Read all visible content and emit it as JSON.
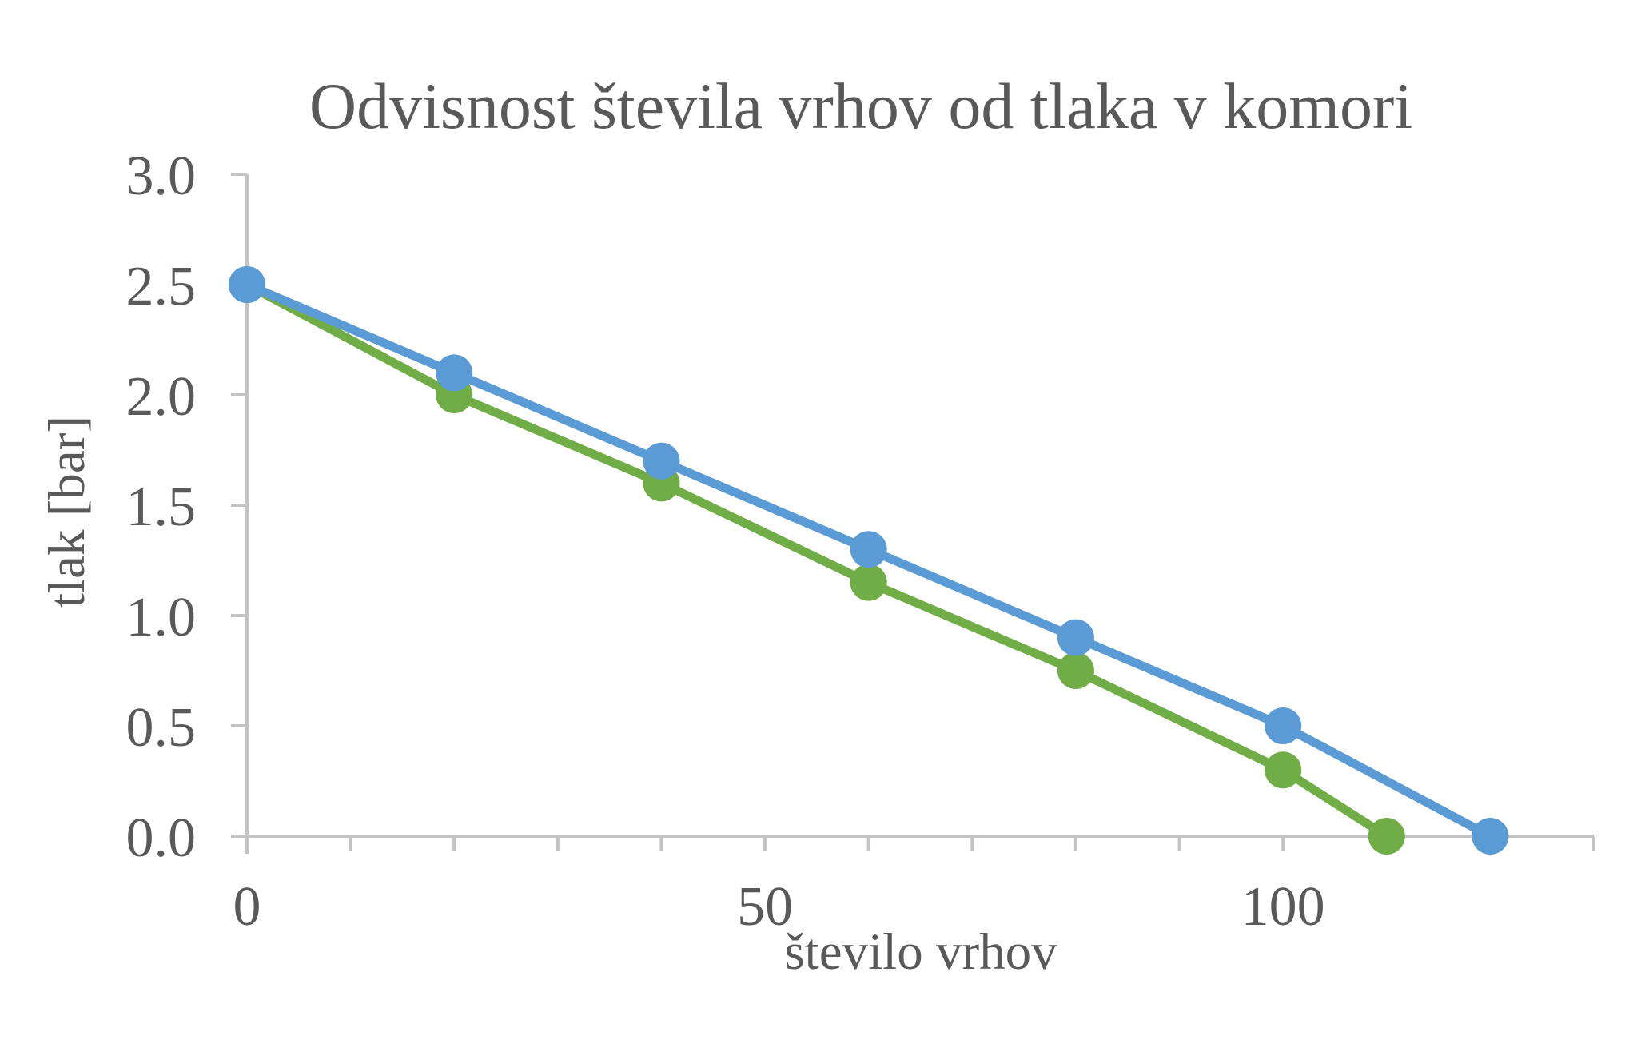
{
  "chart_data": {
    "type": "line",
    "title": "Odvisnost števila vrhov od tlaka v komori",
    "xlabel": "število vrhov",
    "ylabel": "tlak [bar]",
    "xlim": [
      0,
      130
    ],
    "ylim": [
      0.0,
      3.0
    ],
    "x_major_ticks": [
      0,
      50,
      100
    ],
    "x_minor_tick_step": 10,
    "y_ticks": [
      0.0,
      0.5,
      1.0,
      1.5,
      2.0,
      2.5,
      3.0
    ],
    "y_tick_decimals": 1,
    "grid": false,
    "legend_position": "none",
    "axis_color": "#c3c3c3",
    "text_color": "#595959",
    "series": [
      {
        "name": "green-series",
        "color": "#70AD47",
        "points": [
          [
            0,
            2.5
          ],
          [
            20,
            2.0
          ],
          [
            40,
            1.6
          ],
          [
            60,
            1.15
          ],
          [
            80,
            0.75
          ],
          [
            100,
            0.3
          ],
          [
            110,
            0.0
          ]
        ]
      },
      {
        "name": "blue-series",
        "color": "#5B9BD5",
        "points": [
          [
            0,
            2.5
          ],
          [
            20,
            2.1
          ],
          [
            40,
            1.7
          ],
          [
            60,
            1.3
          ],
          [
            80,
            0.9
          ],
          [
            100,
            0.5
          ],
          [
            120,
            0.0
          ]
        ]
      }
    ]
  }
}
